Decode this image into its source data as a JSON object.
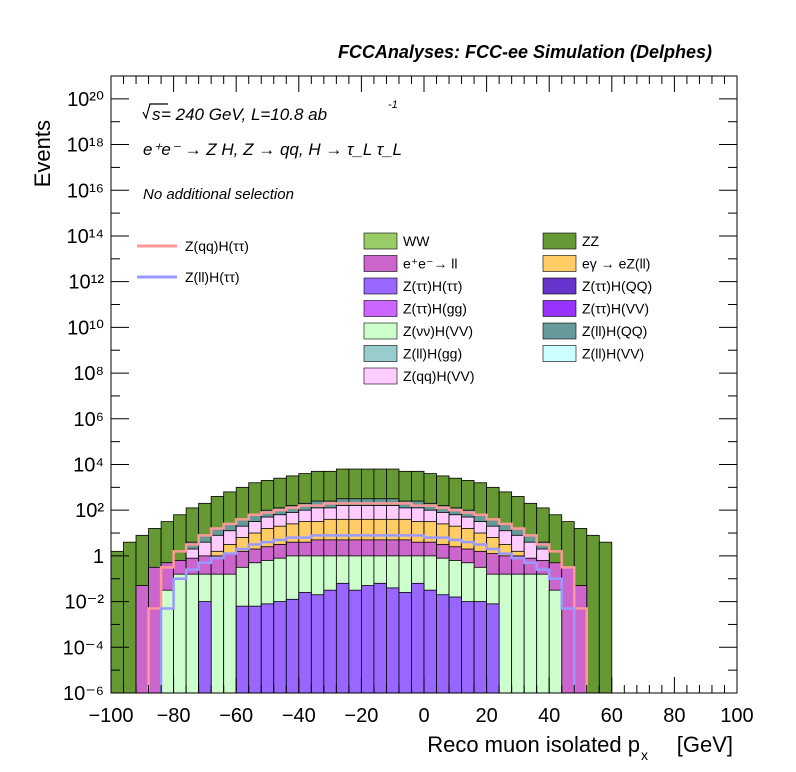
{
  "header": "FCCAnalyses: FCC-ee Simulation (Delphes)",
  "annotations": {
    "energy_prefix": "s",
    "energy_text": " = 240 GeV, L=10.8 ab",
    "energy_sup": "-1",
    "process": "e⁺e⁻ → Z H, Z → qq, H → τ_L τ_L",
    "selection": "No additional selection"
  },
  "chart_data": {
    "type": "histogram-stacked",
    "title": "",
    "xlabel": "Reco muon isolated p",
    "xlabel_sub": "x",
    "xlabel_unit": "[GeV]",
    "ylabel": "Events",
    "xlim": [
      -100,
      100
    ],
    "ylim": [
      1e-06,
      1e+21
    ],
    "log_y": true,
    "bin_width": 4,
    "x_ticks": [
      "−100",
      "−80",
      "−60",
      "−40",
      "−20",
      "0",
      "20",
      "40",
      "60",
      "80",
      "100"
    ],
    "y_ticks": [
      "10⁻⁶",
      "10⁻⁴",
      "10⁻²",
      "1",
      "10²",
      "10⁴",
      "10⁶",
      "10⁸",
      "10¹⁰",
      "10¹²",
      "10¹⁴",
      "10¹⁶",
      "10¹⁸",
      "10²⁰"
    ],
    "legend_backgrounds": [
      {
        "name": "WW",
        "color": "#99cc66"
      },
      {
        "name": "ZZ",
        "color": "#669933"
      },
      {
        "name": "e⁺e⁻→ ll",
        "color": "#cc66cc"
      },
      {
        "name": "eγ → eZ(ll)",
        "color": "#ffcc66"
      },
      {
        "name": "Z(ττ)H(ττ)",
        "color": "#9966ff"
      },
      {
        "name": "Z(ττ)H(QQ)",
        "color": "#6633cc"
      },
      {
        "name": "Z(ττ)H(gg)",
        "color": "#cc66ff"
      },
      {
        "name": "Z(ττ)H(VV)",
        "color": "#9933ff"
      },
      {
        "name": "Z(νν)H(VV)",
        "color": "#ccffcc"
      },
      {
        "name": "Z(ll)H(QQ)",
        "color": "#669999"
      },
      {
        "name": "Z(ll)H(gg)",
        "color": "#99cccc"
      },
      {
        "name": "Z(ll)H(VV)",
        "color": "#ccffff"
      },
      {
        "name": "Z(qq)H(VV)",
        "color": "#ffccff"
      }
    ],
    "legend_signals": [
      {
        "name": "Z(qq)H(ττ)",
        "color": "#ff9999"
      },
      {
        "name": "Z(ll)H(ττ)",
        "color": "#9999ff"
      }
    ],
    "stack_approx_log10_top": [
      {
        "name": "ZZ",
        "color": "#669933",
        "values": [
          0.2,
          0.6,
          0.9,
          1.2,
          1.5,
          1.8,
          2.1,
          2.3,
          2.6,
          2.8,
          3.0,
          3.2,
          3.3,
          3.4,
          3.5,
          3.6,
          3.7,
          3.7,
          3.8,
          3.8,
          3.8,
          3.8,
          3.8,
          3.7,
          3.7,
          3.6,
          3.5,
          3.4,
          3.3,
          3.2,
          3.0,
          2.8,
          2.6,
          2.3,
          2.1,
          1.8,
          1.5,
          1.2,
          0.9,
          0.6
        ]
      },
      {
        "name": "Z(ll)H(QQ)",
        "color": "#669999",
        "values": [
          null,
          null,
          null,
          null,
          null,
          null,
          0.6,
          0.9,
          1.2,
          1.4,
          1.6,
          1.8,
          2.0,
          2.1,
          2.2,
          2.3,
          2.4,
          2.4,
          2.5,
          2.5,
          2.5,
          2.5,
          2.5,
          2.4,
          2.4,
          2.3,
          2.2,
          2.1,
          2.0,
          1.8,
          1.6,
          1.4,
          1.2,
          0.9,
          0.6,
          null,
          null,
          null,
          null,
          null
        ]
      },
      {
        "name": "Z(qq)H(VV)",
        "color": "#ffccff",
        "values": [
          null,
          null,
          null,
          null,
          null,
          null,
          0.3,
          0.6,
          0.9,
          1.1,
          1.3,
          1.5,
          1.7,
          1.8,
          1.9,
          2.0,
          2.1,
          2.1,
          2.2,
          2.2,
          2.2,
          2.2,
          2.2,
          2.1,
          2.1,
          2.0,
          1.9,
          1.8,
          1.7,
          1.5,
          1.3,
          1.1,
          0.9,
          0.6,
          0.3,
          null,
          null,
          null,
          null,
          null
        ]
      },
      {
        "name": "eγ → eZ(ll)",
        "color": "#ffcc66",
        "values": [
          null,
          null,
          null,
          null,
          null,
          null,
          -0.5,
          -0.2,
          0.2,
          0.5,
          0.8,
          1.0,
          1.2,
          1.3,
          1.4,
          1.5,
          1.5,
          1.6,
          1.6,
          1.6,
          1.6,
          1.6,
          1.6,
          1.6,
          1.5,
          1.5,
          1.4,
          1.3,
          1.2,
          1.0,
          0.8,
          0.5,
          0.2,
          -0.2,
          -0.5,
          null,
          null,
          null,
          null,
          null
        ]
      },
      {
        "name": "e⁺e⁻→ ll",
        "color": "#cc66cc",
        "values": [
          -6,
          -6,
          -1.3,
          -0.5,
          -0.3,
          -0.2,
          -0.1,
          0.0,
          0.0,
          0.1,
          0.2,
          0.3,
          0.4,
          0.5,
          0.6,
          0.6,
          0.7,
          0.7,
          0.7,
          0.7,
          0.7,
          0.7,
          0.7,
          0.7,
          0.6,
          0.6,
          0.5,
          0.4,
          0.3,
          0.2,
          0.1,
          0.0,
          0.0,
          -0.1,
          -0.2,
          -0.3,
          -0.5,
          -1.3,
          -6,
          -6
        ]
      },
      {
        "name": "Z(νν)H(VV)",
        "color": "#ccffcc",
        "values": [
          -6,
          -6,
          -6,
          -6,
          -1.5,
          -0.8,
          -0.8,
          -0.8,
          -0.8,
          -0.8,
          -0.5,
          -0.3,
          -0.2,
          -0.1,
          0.0,
          0.0,
          0.0,
          0.0,
          0.0,
          0.0,
          0.0,
          0.0,
          0.0,
          0.0,
          0.0,
          0.0,
          -0.1,
          -0.2,
          -0.3,
          -0.5,
          -0.8,
          -0.8,
          -0.8,
          -0.8,
          -0.8,
          -1.5,
          -6,
          -6,
          -6,
          -6
        ]
      },
      {
        "name": "Z(ττ)H(ττ)",
        "color": "#9966ff",
        "values": [
          -6,
          -6,
          -6,
          -6,
          -6,
          -6,
          -6,
          -2.0,
          -6,
          -6,
          -2.2,
          -2.2,
          -2.1,
          -2.0,
          -1.9,
          -1.6,
          -1.7,
          -1.5,
          -1.2,
          -1.5,
          -1.3,
          -1.2,
          -1.4,
          -1.6,
          -1.2,
          -1.5,
          -1.7,
          -1.8,
          -2.0,
          -2.0,
          -2.1,
          -6,
          -6,
          -6,
          -6,
          -6,
          -6,
          -6,
          -6,
          -6
        ]
      }
    ],
    "signals_approx_log10": [
      {
        "name": "Z(qq)H(ττ)",
        "color": "#ff9999",
        "values": [
          null,
          null,
          null,
          -2.3,
          -0.5,
          0.2,
          0.5,
          0.9,
          1.2,
          1.4,
          1.6,
          1.8,
          1.9,
          2.0,
          2.1,
          2.2,
          2.2,
          2.3,
          2.3,
          2.3,
          2.3,
          2.3,
          2.3,
          2.3,
          2.2,
          2.2,
          2.1,
          2.0,
          1.9,
          1.8,
          1.6,
          1.4,
          1.2,
          0.9,
          0.5,
          0.2,
          -0.5,
          -2.3,
          null,
          null
        ]
      },
      {
        "name": "Z(ll)H(ττ)",
        "color": "#9999ff",
        "values": [
          null,
          null,
          null,
          null,
          -2.3,
          -1.0,
          -0.6,
          -0.3,
          -0.1,
          0.1,
          0.3,
          0.5,
          0.6,
          0.7,
          0.8,
          0.8,
          0.9,
          0.9,
          0.9,
          0.9,
          0.9,
          0.9,
          0.9,
          0.9,
          0.9,
          0.8,
          0.8,
          0.7,
          0.6,
          0.5,
          0.3,
          0.1,
          -0.1,
          -0.3,
          -0.6,
          -1.0,
          -2.3,
          null,
          null,
          null
        ]
      }
    ]
  }
}
